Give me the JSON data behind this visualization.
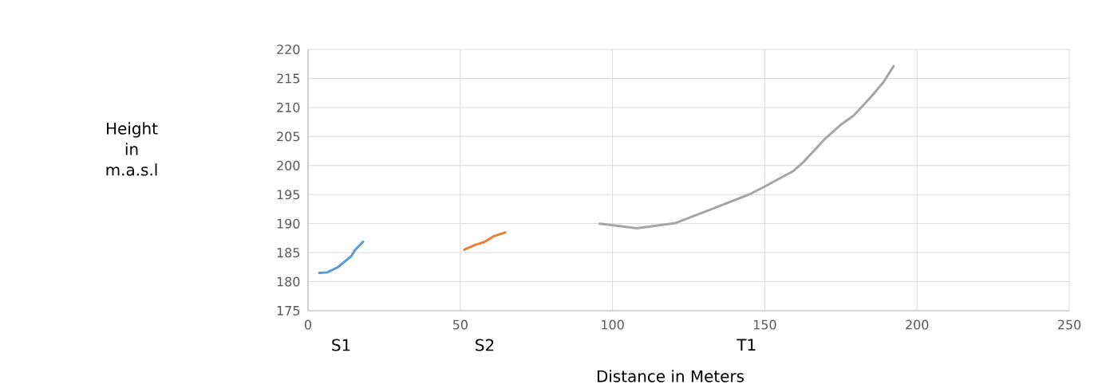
{
  "chart_data": {
    "type": "line",
    "xlabel": "Distance in Meters",
    "xlim": [
      0,
      250
    ],
    "xticks": [
      0,
      50,
      100,
      150,
      200,
      250
    ],
    "ylim": [
      175,
      220
    ],
    "yticks": [
      175,
      180,
      185,
      190,
      195,
      200,
      205,
      210,
      215,
      220
    ],
    "grid": true,
    "marker": "none",
    "line_style": "solid",
    "annotations": [
      "Height in m.a.s.l",
      "S1",
      "S2",
      "T1"
    ],
    "series": [
      {
        "color": "#5b9bd5",
        "x": [
          3.7,
          6.3,
          9.8,
          14.2,
          15.5,
          18.1
        ],
        "values": [
          181.5,
          181.6,
          182.5,
          184.4,
          185.5,
          186.9
        ]
      },
      {
        "color": "#ed7d31",
        "x": [
          51.3,
          55.2,
          57.8,
          60.9,
          64.8
        ],
        "values": [
          185.5,
          186.4,
          186.8,
          187.8,
          188.5
        ]
      },
      {
        "color": "#a5a5a5",
        "x": [
          95.8,
          108.0,
          120.7,
          132.1,
          145.2,
          150.4,
          159.2,
          162.7,
          169.6,
          174.9,
          179.2,
          184.5,
          188.9,
          192.3
        ],
        "values": [
          190.0,
          189.2,
          190.1,
          192.4,
          195.1,
          196.5,
          199.0,
          200.6,
          204.5,
          207.0,
          208.6,
          211.6,
          214.3,
          217.1
        ]
      }
    ]
  }
}
